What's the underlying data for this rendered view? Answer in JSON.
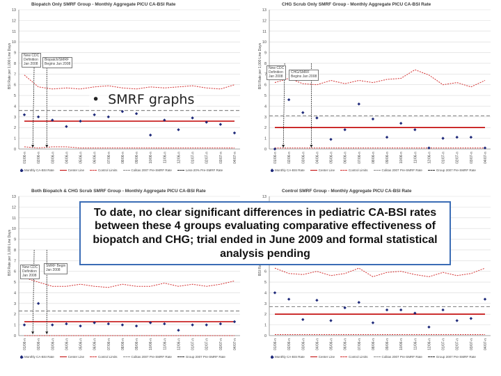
{
  "bullet_text": "SMRF graphs",
  "conclusion_text": "To date, no clear significant differences in pediatric CA-BSI rates between these 4 groups evaluating comparative effectiveness of biopatch and CHG; trial ended in June 2009 and formal statistical analysis pending",
  "colors": {
    "data_point": "#1f2a7a",
    "center_line": "#c00000",
    "control_limit": "#d32f2f",
    "callout_border": "#777777",
    "conclusion_border": "#3a6cb5"
  },
  "chart_data": [
    {
      "type": "line",
      "title": "Biopatch Only SMRF Group - Monthly Aggregate PICU CA-BSI Rate",
      "ylabel": "BSI Rate per 1,000 Line Days",
      "ylim": [
        0,
        13
      ],
      "yticks": [
        "0",
        "1",
        "2",
        "3",
        "4",
        "5",
        "6",
        "7",
        "8",
        "9",
        "10",
        "11",
        "12",
        "13"
      ],
      "categories": [
        "01/06-n",
        "02/06-n",
        "03/06-n",
        "04/06-n",
        "05/06-n",
        "06/06-n",
        "07/06-n",
        "08/06-n",
        "09/06-n",
        "10/06-n",
        "11/06-n",
        "12/06-n",
        "01/07-n",
        "02/07-n",
        "03/07-n",
        "04/07-n"
      ],
      "series": [
        {
          "name": "Monthly CA-BSI Rate",
          "values": [
            3.2,
            3.0,
            2.7,
            2.1,
            2.6,
            3.2,
            3.0,
            3.5,
            3.3,
            1.3,
            2.7,
            1.8,
            2.9,
            2.5,
            2.3,
            1.5
          ]
        },
        {
          "name": "Center Line",
          "values": [
            2.6,
            2.6,
            2.6,
            2.6,
            2.6,
            2.6,
            2.6,
            2.6,
            2.6,
            2.6,
            2.6,
            2.6,
            2.6,
            2.6,
            2.6,
            2.6
          ]
        },
        {
          "name": "Control Limits",
          "values": [
            6.9,
            5.8,
            5.6,
            5.7,
            5.6,
            5.8,
            5.9,
            5.7,
            5.6,
            5.8,
            5.7,
            5.8,
            5.9,
            5.7,
            5.6,
            6.0
          ]
        },
        {
          "name": "Control Limits (lower)",
          "values": [
            0.2,
            0.1,
            0.2,
            0.2,
            0.1,
            0.1,
            0.1,
            0.1,
            0.1,
            0.1,
            0.1,
            0.1,
            0.1,
            0.1,
            0.1,
            0.1
          ]
        }
      ],
      "ref_lines": [
        {
          "name": "Colitas 2007 Pre-SMRF Rate",
          "value": 3.6
        }
      ],
      "legend": [
        "Monthly CA-BSI Rate",
        "Center Line",
        "Control Limits",
        "Colitas 2007 Pre-SMRF Rate",
        "Less-20% Pre-SMRF Rate"
      ],
      "legend_position": "bottom",
      "annotations": [
        {
          "text": "New CDC\nDefinition\nJan 2008",
          "at_index": 1
        },
        {
          "text": "Biopatch/SMRF\nBegins Jan 2008",
          "at_index": 2
        }
      ]
    },
    {
      "type": "line",
      "title": "CHG Scrub Only SMRF Group - Monthly Aggregate PICU CA-BSI Rate",
      "ylabel": "BSI Rate per 1,000 Line Days",
      "ylim": [
        0,
        13
      ],
      "yticks": [
        "0",
        "1",
        "2",
        "3",
        "4",
        "5",
        "6",
        "7",
        "8",
        "9",
        "10",
        "11",
        "12",
        "13"
      ],
      "categories": [
        "01/06-n",
        "02/06-n",
        "03/06-n",
        "04/06-n",
        "05/06-n",
        "06/06-n",
        "07/06-n",
        "08/06-n",
        "09/06-n",
        "10/06-n",
        "11/06-n",
        "12/06-n",
        "01/07-n",
        "02/07-n",
        "03/07-n",
        "04/07-n"
      ],
      "series": [
        {
          "name": "Monthly CA-BSI Rate",
          "values": [
            0.0,
            4.6,
            3.4,
            2.9,
            0.9,
            1.8,
            4.2,
            2.8,
            1.1,
            2.4,
            1.8,
            0.1,
            1.0,
            1.1,
            1.1,
            0.1
          ]
        },
        {
          "name": "Center Line",
          "values": [
            2.0,
            2.0,
            2.0,
            2.0,
            2.0,
            2.0,
            2.0,
            2.0,
            2.0,
            2.0,
            2.0,
            2.0,
            2.0,
            2.0,
            2.0,
            2.0
          ]
        },
        {
          "name": "Control Limits",
          "values": [
            6.2,
            6.6,
            6.1,
            6.0,
            6.4,
            6.1,
            6.4,
            6.2,
            6.5,
            6.6,
            7.4,
            6.9,
            6.0,
            6.2,
            5.8,
            6.4
          ]
        },
        {
          "name": "Control Limits (lower)",
          "values": [
            0.1,
            0.1,
            0.1,
            0.1,
            0.1,
            0.1,
            0.1,
            0.1,
            0.1,
            0.1,
            0.1,
            0.1,
            0.1,
            0.1,
            0.1,
            0.1
          ]
        }
      ],
      "ref_lines": [
        {
          "name": "Colitas 2007 Pre-SMRF Rate",
          "value": 3.1
        }
      ],
      "legend": [
        "Monthly CA-BSI Rate",
        "Center Line",
        "Control Limits",
        "Colitas 2007 Pre-SMRF Rate",
        "Group 2007 Pre-SMRF Rate"
      ],
      "legend_position": "bottom",
      "annotations": [
        {
          "text": "New CDC\nDefinition\nJan 2008",
          "at_index": 1
        },
        {
          "text": "CHG/SMRF\nBegins Jan 2008",
          "at_index": 3
        }
      ]
    },
    {
      "type": "line",
      "title": "Both Biopatch & CHG Scrub SMRF Group - Monthly Aggregate PICU CA-BSI Rate",
      "ylabel": "BSI Rate per 1,000 Line Days",
      "ylim": [
        0,
        13
      ],
      "yticks": [
        "0",
        "1",
        "2",
        "3",
        "4",
        "5",
        "6",
        "7",
        "8",
        "9",
        "10",
        "11",
        "12",
        "13"
      ],
      "categories": [
        "01/06-n",
        "02/06-n",
        "03/06-n",
        "04/06-n",
        "05/06-n",
        "06/06-n",
        "07/06-n",
        "08/06-n",
        "09/06-n",
        "10/06-n",
        "11/06-n",
        "12/06-n",
        "01/07-n",
        "02/07-n",
        "03/07-n",
        "04/07-n"
      ],
      "series": [
        {
          "name": "Monthly CA-BSI Rate",
          "values": [
            1.0,
            3.0,
            1.0,
            1.1,
            0.9,
            1.2,
            1.1,
            1.0,
            0.9,
            1.2,
            1.1,
            0.5,
            1.0,
            1.0,
            1.1,
            1.3
          ]
        },
        {
          "name": "Center Line",
          "values": [
            1.3,
            1.3,
            1.3,
            1.3,
            1.3,
            1.3,
            1.3,
            1.3,
            1.3,
            1.3,
            1.3,
            1.3,
            1.3,
            1.3,
            1.3,
            1.3
          ]
        },
        {
          "name": "Control Limits",
          "values": [
            5.4,
            5.0,
            4.6,
            4.6,
            4.8,
            4.6,
            4.5,
            4.8,
            4.6,
            4.6,
            4.9,
            4.6,
            4.8,
            4.6,
            4.8,
            5.1
          ]
        },
        {
          "name": "Control Limits (lower)",
          "values": [
            0.0,
            0.0,
            0.0,
            0.0,
            0.0,
            0.0,
            0.0,
            0.0,
            0.0,
            0.0,
            0.0,
            0.0,
            0.0,
            0.0,
            0.0,
            0.0
          ]
        }
      ],
      "ref_lines": [
        {
          "name": "Colitas 2007 Pre-SMRF Rate",
          "value": 2.3
        }
      ],
      "legend": [
        "Monthly CA-BSI Rate",
        "Center Line",
        "Control Limits",
        "Colitas 2007 Pre-SMRF Rate",
        "Group 2007 Pre-SMRF Rate"
      ],
      "legend_position": "bottom",
      "annotations": [
        {
          "text": "New CDC\nDefinition\nJan 2008",
          "at_index": 1
        },
        {
          "text": "SMRF Begin\nJan 2008",
          "at_index": 2
        }
      ]
    },
    {
      "type": "line",
      "title": "Control SMRF Group - Monthly Aggregate PICU CA-BSI Rate",
      "ylabel": "BSI Rate per 1,000 Line Days",
      "ylim": [
        0,
        13
      ],
      "yticks": [
        "0",
        "1",
        "2",
        "3",
        "4",
        "5",
        "6",
        "7",
        "8",
        "9",
        "10",
        "11",
        "12",
        "13"
      ],
      "categories": [
        "01/06-n",
        "02/06-n",
        "03/06-n",
        "04/06-n",
        "05/06-n",
        "06/06-n",
        "07/06-n",
        "08/06-n",
        "09/06-n",
        "10/06-n",
        "11/06-n",
        "12/06-n",
        "01/07-n",
        "02/07-n",
        "03/07-n",
        "04/07-n"
      ],
      "series": [
        {
          "name": "Monthly CA-BSI Rate",
          "values": [
            4.0,
            3.4,
            1.5,
            3.3,
            1.4,
            2.6,
            3.1,
            1.2,
            2.4,
            2.4,
            2.1,
            0.8,
            2.4,
            1.4,
            1.6,
            3.4
          ]
        },
        {
          "name": "Center Line",
          "values": [
            2.0,
            2.0,
            2.0,
            2.0,
            2.0,
            2.0,
            2.0,
            2.0,
            2.0,
            2.0,
            2.0,
            2.0,
            2.0,
            2.0,
            2.0,
            2.0
          ]
        },
        {
          "name": "Control Limits",
          "values": [
            6.3,
            5.8,
            5.7,
            6.0,
            5.6,
            5.8,
            6.3,
            5.5,
            5.9,
            6.0,
            5.7,
            5.5,
            5.9,
            5.6,
            5.8,
            6.3
          ]
        },
        {
          "name": "Control Limits (lower)",
          "values": [
            0.1,
            0.1,
            0.1,
            0.1,
            0.1,
            0.1,
            0.1,
            0.1,
            0.1,
            0.1,
            0.1,
            0.1,
            0.1,
            0.1,
            0.1,
            0.1
          ]
        }
      ],
      "ref_lines": [
        {
          "name": "Colitas 2007 Pre-SMRF Rate",
          "value": 2.7
        }
      ],
      "legend": [
        "Monthly CA-BSI Rate",
        "Center Line",
        "Control Limits",
        "Colitas 2007 Pre-SMRF Rate",
        "Group 2007 Pre-SMRF Rate"
      ],
      "legend_position": "bottom",
      "annotations": []
    }
  ]
}
